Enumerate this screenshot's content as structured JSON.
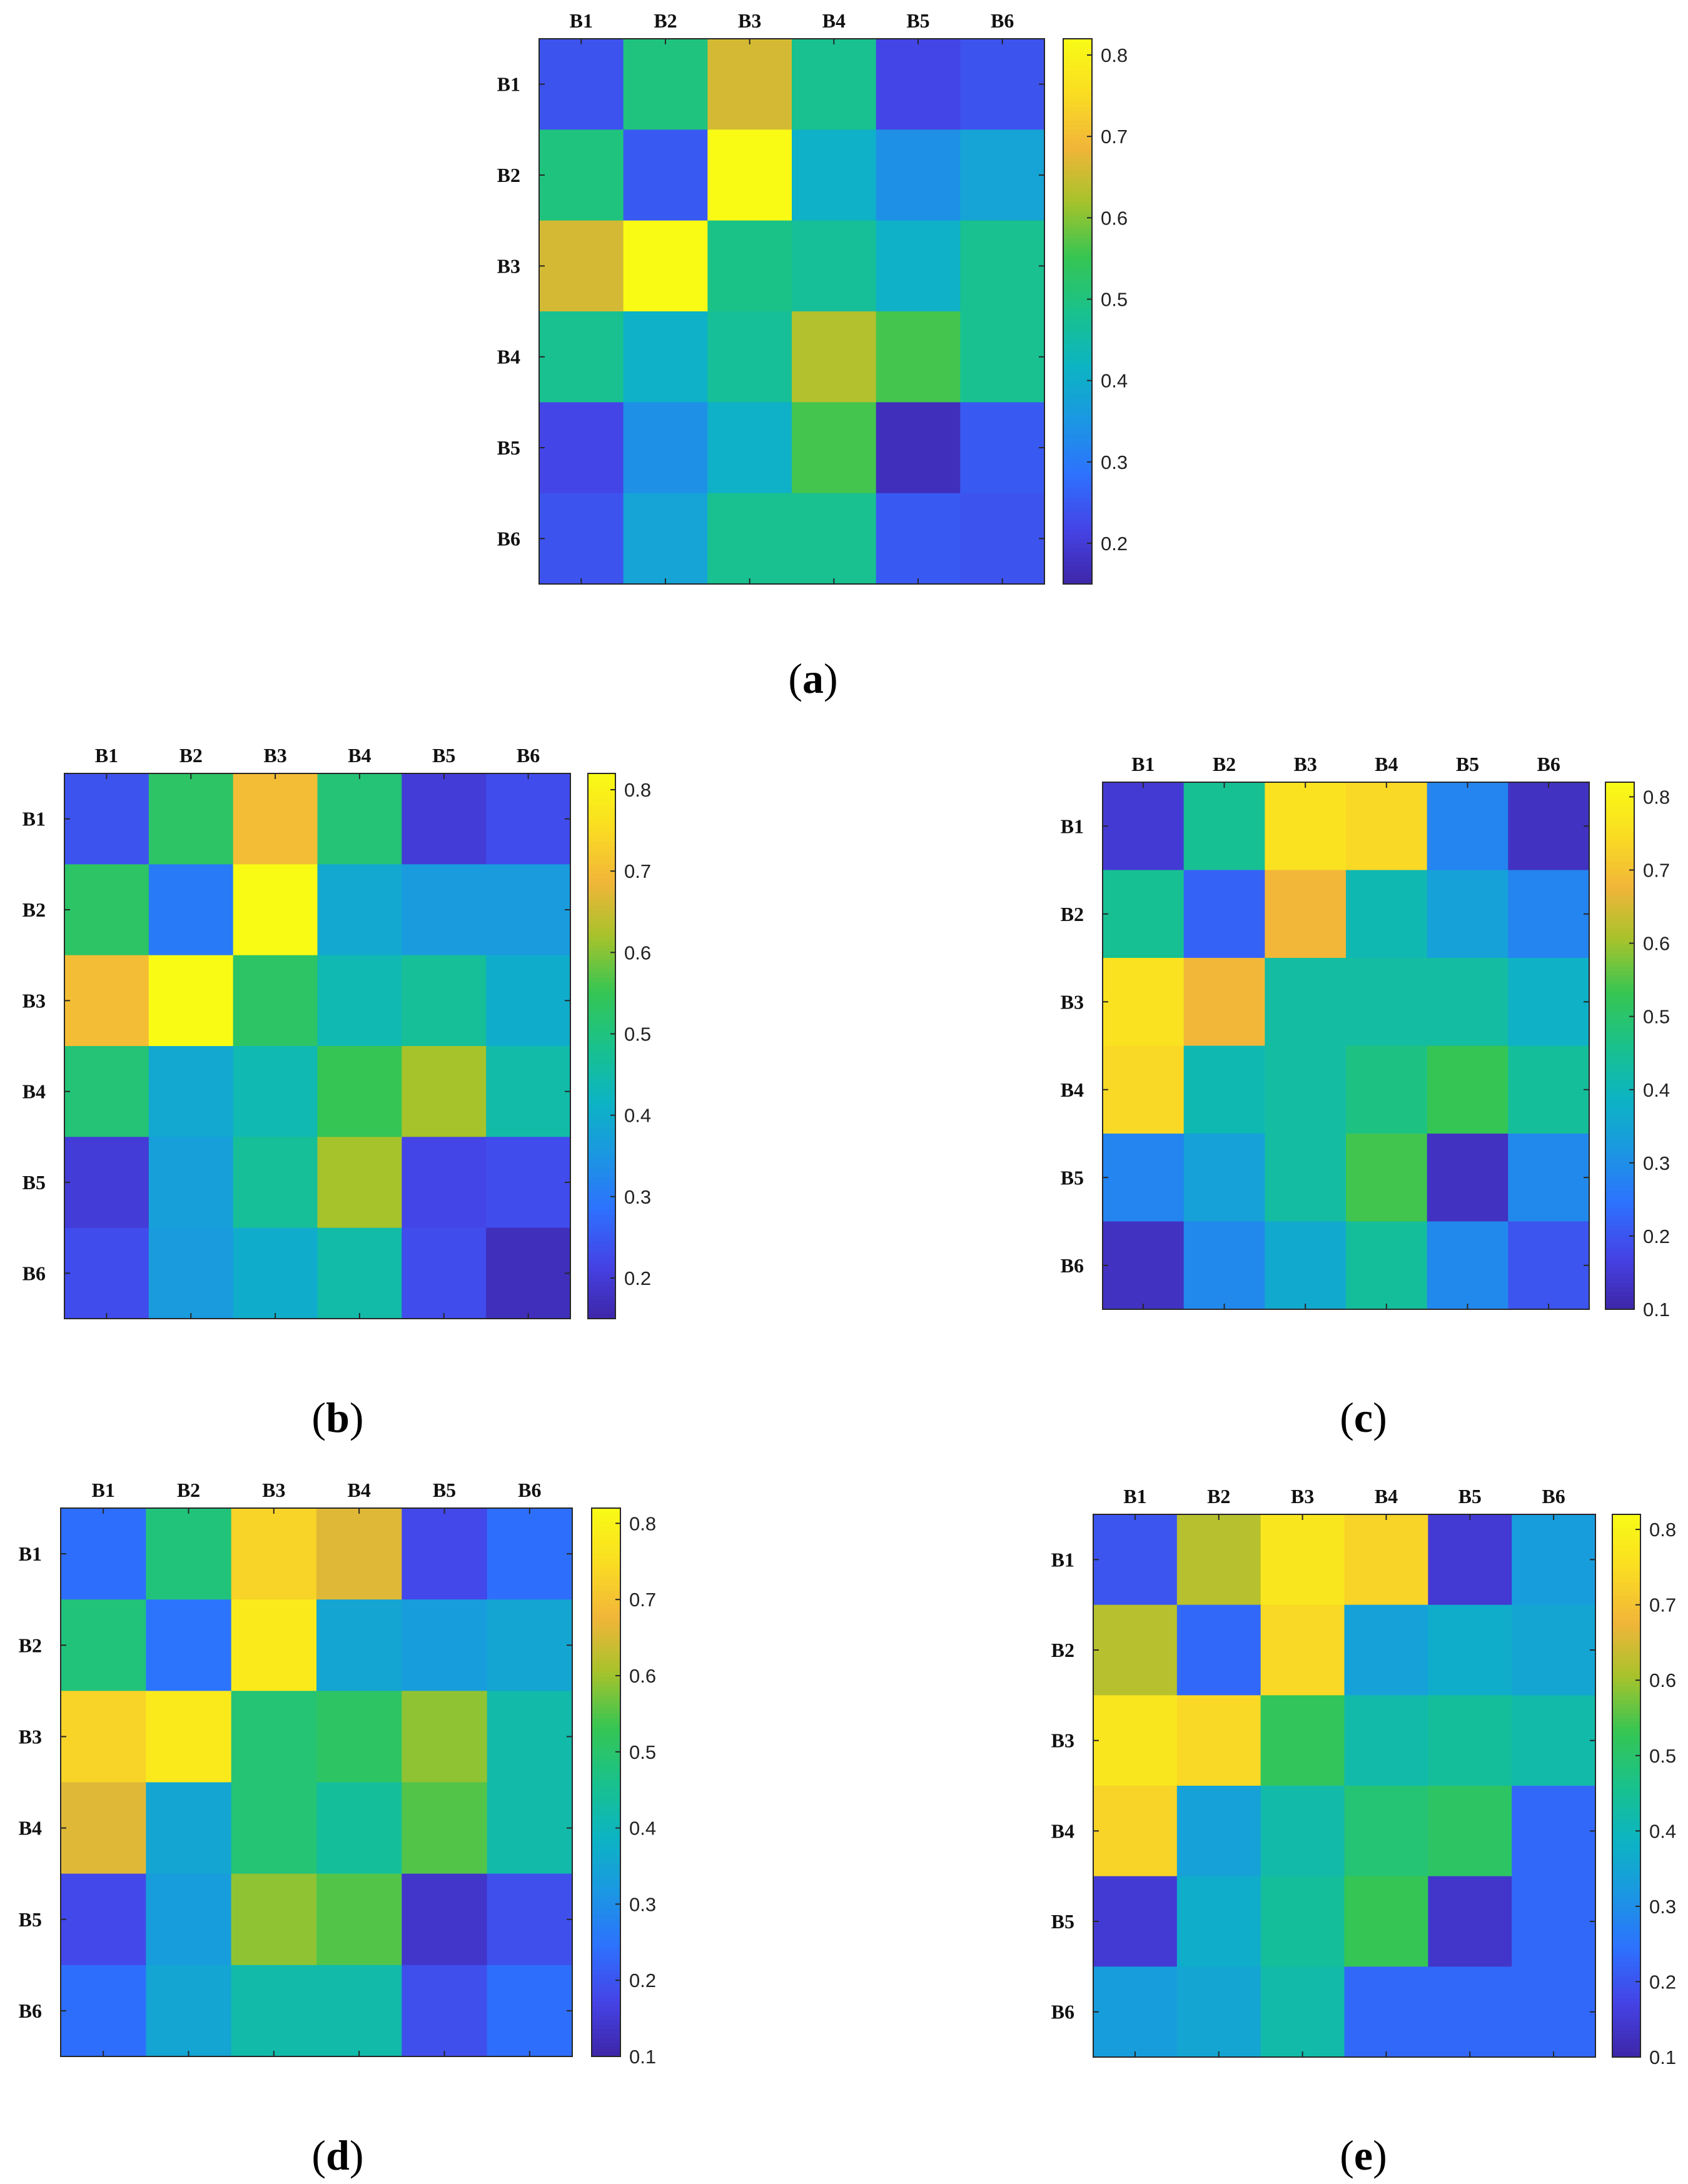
{
  "figure": {
    "colormap": "parula",
    "colormap_stops": [
      "#3e26a8",
      "#4543e6",
      "#2d71fe",
      "#1b97e2",
      "#0cb4c3",
      "#19c28b",
      "#36c553",
      "#a6c32b",
      "#f1b53a",
      "#fadd22",
      "#f9fb15"
    ]
  },
  "chart_data": [
    {
      "type": "heatmap",
      "panel": "(a)",
      "panel_letter": "a",
      "row_labels": [
        "B1",
        "B2",
        "B3",
        "B4",
        "B5",
        "B6"
      ],
      "col_labels": [
        "B1",
        "B2",
        "B3",
        "B4",
        "B5",
        "B6"
      ],
      "values": [
        [
          0.24,
          0.5,
          0.66,
          0.48,
          0.22,
          0.24
        ],
        [
          0.5,
          0.25,
          0.82,
          0.41,
          0.34,
          0.38
        ],
        [
          0.66,
          0.82,
          0.49,
          0.47,
          0.41,
          0.48
        ],
        [
          0.48,
          0.41,
          0.47,
          0.63,
          0.56,
          0.48
        ],
        [
          0.22,
          0.34,
          0.41,
          0.56,
          0.17,
          0.25
        ],
        [
          0.24,
          0.38,
          0.48,
          0.48,
          0.25,
          0.24
        ]
      ],
      "colorbar": {
        "vmin": 0.15,
        "vmax": 0.82,
        "ticks": [
          0.2,
          0.3,
          0.4,
          0.5,
          0.6,
          0.7,
          0.8
        ]
      }
    },
    {
      "type": "heatmap",
      "panel": "(b)",
      "panel_letter": "b",
      "row_labels": [
        "B1",
        "B2",
        "B3",
        "B4",
        "B5",
        "B6"
      ],
      "col_labels": [
        "B1",
        "B2",
        "B3",
        "B4",
        "B5",
        "B6"
      ],
      "values": [
        [
          0.24,
          0.53,
          0.7,
          0.51,
          0.2,
          0.23
        ],
        [
          0.53,
          0.3,
          0.82,
          0.39,
          0.36,
          0.36
        ],
        [
          0.7,
          0.82,
          0.53,
          0.44,
          0.47,
          0.4
        ],
        [
          0.51,
          0.39,
          0.44,
          0.55,
          0.62,
          0.45
        ],
        [
          0.2,
          0.37,
          0.47,
          0.62,
          0.22,
          0.23
        ],
        [
          0.23,
          0.36,
          0.4,
          0.45,
          0.23,
          0.17
        ]
      ],
      "colorbar": {
        "vmin": 0.15,
        "vmax": 0.82,
        "ticks": [
          0.2,
          0.3,
          0.4,
          0.5,
          0.6,
          0.7,
          0.8
        ]
      }
    },
    {
      "type": "heatmap",
      "panel": "(c)",
      "panel_letter": "c",
      "row_labels": [
        "B1",
        "B2",
        "B3",
        "B4",
        "B5",
        "B6"
      ],
      "col_labels": [
        "B1",
        "B2",
        "B3",
        "B4",
        "B5",
        "B6"
      ],
      "values": [
        [
          0.15,
          0.45,
          0.76,
          0.74,
          0.28,
          0.13
        ],
        [
          0.45,
          0.22,
          0.68,
          0.41,
          0.34,
          0.28
        ],
        [
          0.76,
          0.68,
          0.43,
          0.43,
          0.43,
          0.38
        ],
        [
          0.74,
          0.41,
          0.43,
          0.47,
          0.53,
          0.44
        ],
        [
          0.28,
          0.34,
          0.43,
          0.54,
          0.13,
          0.29
        ],
        [
          0.13,
          0.29,
          0.36,
          0.44,
          0.29,
          0.2
        ]
      ],
      "colorbar": {
        "vmin": 0.1,
        "vmax": 0.82,
        "ticks": [
          0.1,
          0.2,
          0.3,
          0.4,
          0.5,
          0.6,
          0.7,
          0.8
        ]
      }
    },
    {
      "type": "heatmap",
      "panel": "(d)",
      "panel_letter": "d",
      "row_labels": [
        "B1",
        "B2",
        "B3",
        "B4",
        "B5",
        "B6"
      ],
      "col_labels": [
        "B1",
        "B2",
        "B3",
        "B4",
        "B5",
        "B6"
      ],
      "values": [
        [
          0.24,
          0.48,
          0.73,
          0.66,
          0.18,
          0.24
        ],
        [
          0.48,
          0.25,
          0.78,
          0.35,
          0.33,
          0.35
        ],
        [
          0.73,
          0.78,
          0.49,
          0.51,
          0.59,
          0.42
        ],
        [
          0.66,
          0.35,
          0.49,
          0.44,
          0.55,
          0.42
        ],
        [
          0.18,
          0.33,
          0.59,
          0.55,
          0.14,
          0.19
        ],
        [
          0.24,
          0.35,
          0.42,
          0.42,
          0.19,
          0.24
        ]
      ],
      "colorbar": {
        "vmin": 0.1,
        "vmax": 0.82,
        "ticks": [
          0.1,
          0.2,
          0.3,
          0.4,
          0.5,
          0.6,
          0.7,
          0.8
        ]
      }
    },
    {
      "type": "heatmap",
      "panel": "(e)",
      "panel_letter": "e",
      "row_labels": [
        "B1",
        "B2",
        "B3",
        "B4",
        "B5",
        "B6"
      ],
      "col_labels": [
        "B1",
        "B2",
        "B3",
        "B4",
        "B5",
        "B6"
      ],
      "values": [
        [
          0.2,
          0.62,
          0.77,
          0.73,
          0.15,
          0.33
        ],
        [
          0.62,
          0.23,
          0.74,
          0.34,
          0.37,
          0.35
        ],
        [
          0.77,
          0.74,
          0.52,
          0.42,
          0.44,
          0.42
        ],
        [
          0.73,
          0.34,
          0.42,
          0.49,
          0.51,
          0.23
        ],
        [
          0.15,
          0.37,
          0.44,
          0.53,
          0.14,
          0.23
        ],
        [
          0.33,
          0.35,
          0.42,
          0.23,
          0.23,
          0.23
        ]
      ],
      "colorbar": {
        "vmin": 0.1,
        "vmax": 0.82,
        "ticks": [
          0.1,
          0.2,
          0.3,
          0.4,
          0.5,
          0.6,
          0.7,
          0.8
        ]
      }
    }
  ]
}
